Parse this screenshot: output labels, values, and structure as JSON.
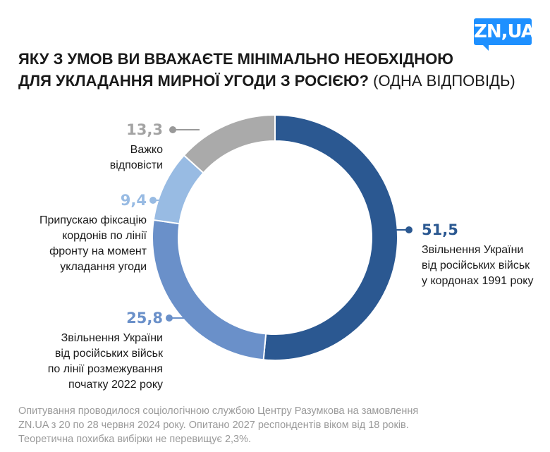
{
  "logo": {
    "text": "ZN,UA"
  },
  "title": {
    "line1": "Яку з умов ви вважаєте мінімально необхідною",
    "line2_bold": "для укладання мирної угоди з росією?",
    "line2_normal": "(ОДНА ВІДПОВІДЬ)"
  },
  "chart_data": {
    "type": "pie",
    "donut": true,
    "start": "top",
    "direction": "clockwise",
    "slices": [
      {
        "value": 51.5,
        "label_value": "51,5",
        "label": [
          "Звільнення України",
          "від російських військ",
          "у кордонах 1991 року"
        ],
        "color": "#2b5891"
      },
      {
        "value": 25.8,
        "label_value": "25,8",
        "label": [
          "Звільнення України",
          "від російських військ",
          "по лінії розмежування",
          "початку 2022 року"
        ],
        "color": "#6a90c9"
      },
      {
        "value": 9.4,
        "label_value": "9,4",
        "label": [
          "Припускаю фіксацію",
          "кордонів по лінії",
          "фронту на момент",
          "укладання угоди"
        ],
        "color": "#98bbe3"
      },
      {
        "value": 13.3,
        "label_value": "13,3",
        "label": [
          "Важко",
          "відповісти"
        ],
        "color": "#aaaaaa"
      }
    ]
  },
  "footer": {
    "line1": "Опитування проводилося  соціологічною службою Центру Разумкова на замовлення",
    "line2": "ZN.UA з 20 по 28 червня 2024 року. Опитано 2027 респондентів віком від 18 років.",
    "line3": "Теоретична похибка вибірки не перевищує 2,3%."
  }
}
